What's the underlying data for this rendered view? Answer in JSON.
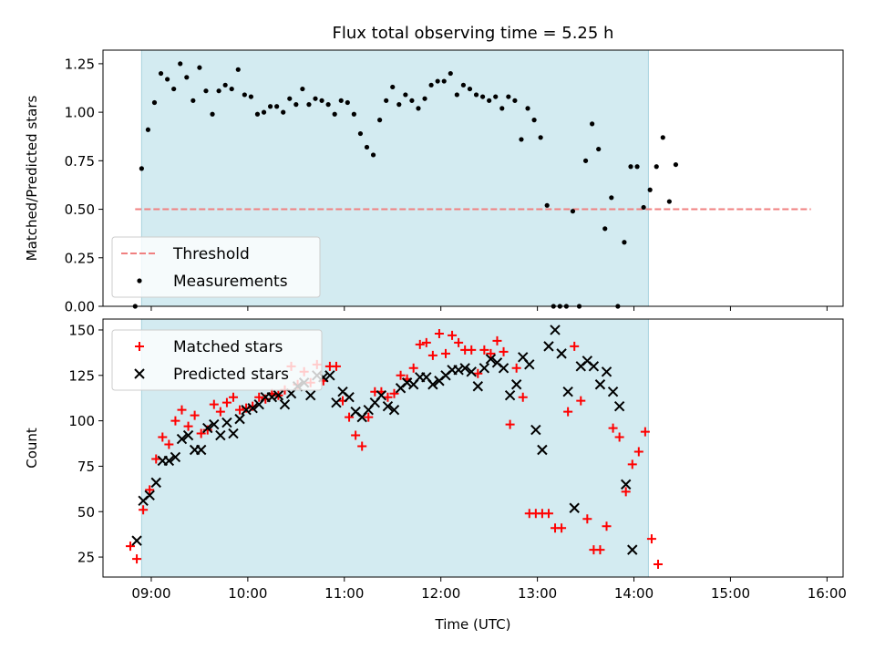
{
  "chart_data": [
    {
      "type": "scatter",
      "title": "Flux total observing time = 5.25 h",
      "ylabel": "Matched/Predicted stars",
      "xlabel": "",
      "xlim": [
        "08:30",
        "16:10"
      ],
      "ylim": [
        0,
        1.32
      ],
      "x_ticks": [
        "09:00",
        "10:00",
        "11:00",
        "12:00",
        "13:00",
        "14:00",
        "15:00",
        "16:00"
      ],
      "y_ticks": [
        "0.00",
        "0.25",
        "0.50",
        "0.75",
        "1.00",
        "1.25"
      ],
      "shaded_interval": {
        "start": "08:54",
        "end": "14:09",
        "color": "#d3ebf1"
      },
      "threshold": {
        "name": "Threshold",
        "value": 0.5,
        "x_range": [
          "08:50",
          "15:50"
        ],
        "color": "#f08080"
      },
      "legend": {
        "position": "lower-left",
        "entries": [
          "Threshold",
          "Measurements"
        ]
      },
      "series": [
        {
          "name": "Measurements",
          "color": "#000000",
          "marker": "dot",
          "points": [
            [
              "08:50",
              0.0
            ],
            [
              "08:54",
              0.71
            ],
            [
              "08:58",
              0.91
            ],
            [
              "09:02",
              1.05
            ],
            [
              "09:06",
              1.2
            ],
            [
              "09:10",
              1.17
            ],
            [
              "09:14",
              1.12
            ],
            [
              "09:18",
              1.25
            ],
            [
              "09:22",
              1.18
            ],
            [
              "09:26",
              1.06
            ],
            [
              "09:30",
              1.23
            ],
            [
              "09:34",
              1.11
            ],
            [
              "09:38",
              0.99
            ],
            [
              "09:42",
              1.11
            ],
            [
              "09:46",
              1.14
            ],
            [
              "09:50",
              1.12
            ],
            [
              "09:54",
              1.22
            ],
            [
              "09:58",
              1.09
            ],
            [
              "10:02",
              1.08
            ],
            [
              "10:06",
              0.99
            ],
            [
              "10:10",
              1.0
            ],
            [
              "10:14",
              1.03
            ],
            [
              "10:18",
              1.03
            ],
            [
              "10:22",
              1.0
            ],
            [
              "10:26",
              1.07
            ],
            [
              "10:30",
              1.04
            ],
            [
              "10:34",
              1.12
            ],
            [
              "10:38",
              1.04
            ],
            [
              "10:42",
              1.07
            ],
            [
              "10:46",
              1.06
            ],
            [
              "10:50",
              1.04
            ],
            [
              "10:54",
              0.99
            ],
            [
              "10:58",
              1.06
            ],
            [
              "11:02",
              1.05
            ],
            [
              "11:06",
              0.99
            ],
            [
              "11:10",
              0.89
            ],
            [
              "11:14",
              0.82
            ],
            [
              "11:18",
              0.78
            ],
            [
              "11:22",
              0.96
            ],
            [
              "11:26",
              1.06
            ],
            [
              "11:30",
              1.13
            ],
            [
              "11:34",
              1.04
            ],
            [
              "11:38",
              1.09
            ],
            [
              "11:42",
              1.06
            ],
            [
              "11:46",
              1.02
            ],
            [
              "11:50",
              1.07
            ],
            [
              "11:54",
              1.14
            ],
            [
              "11:58",
              1.16
            ],
            [
              "12:02",
              1.16
            ],
            [
              "12:06",
              1.2
            ],
            [
              "12:10",
              1.09
            ],
            [
              "12:14",
              1.14
            ],
            [
              "12:18",
              1.12
            ],
            [
              "12:22",
              1.09
            ],
            [
              "12:26",
              1.08
            ],
            [
              "12:30",
              1.06
            ],
            [
              "12:34",
              1.08
            ],
            [
              "12:38",
              1.02
            ],
            [
              "12:42",
              1.08
            ],
            [
              "12:46",
              1.06
            ],
            [
              "12:50",
              0.86
            ],
            [
              "12:54",
              1.02
            ],
            [
              "12:58",
              0.96
            ],
            [
              "13:02",
              0.87
            ],
            [
              "13:06",
              0.52
            ],
            [
              "13:10",
              0.0
            ],
            [
              "13:14",
              0.0
            ],
            [
              "13:18",
              0.0
            ],
            [
              "13:22",
              0.49
            ],
            [
              "13:26",
              0.0
            ],
            [
              "13:30",
              0.75
            ],
            [
              "13:34",
              0.94
            ],
            [
              "13:38",
              0.81
            ],
            [
              "13:42",
              0.4
            ],
            [
              "13:46",
              0.56
            ],
            [
              "13:50",
              0.0
            ],
            [
              "13:54",
              0.33
            ],
            [
              "13:58",
              0.72
            ],
            [
              "14:02",
              0.72
            ],
            [
              "14:06",
              0.51
            ],
            [
              "14:10",
              0.6
            ],
            [
              "14:14",
              0.72
            ],
            [
              "14:18",
              0.87
            ],
            [
              "14:22",
              0.54
            ],
            [
              "14:26",
              0.73
            ]
          ]
        }
      ]
    },
    {
      "type": "scatter",
      "title": "",
      "ylabel": "Count",
      "xlabel": "Time (UTC)",
      "xlim": [
        "08:30",
        "16:10"
      ],
      "ylim": [
        14,
        156
      ],
      "x_ticks": [
        "09:00",
        "10:00",
        "11:00",
        "12:00",
        "13:00",
        "14:00",
        "15:00",
        "16:00"
      ],
      "y_ticks": [
        "25",
        "50",
        "75",
        "100",
        "125",
        "150"
      ],
      "shaded_interval": {
        "start": "08:54",
        "end": "14:09",
        "color": "#d3ebf1"
      },
      "legend": {
        "position": "top-left",
        "entries": [
          "Matched stars",
          "Predicted stars"
        ]
      },
      "series": [
        {
          "name": "Matched stars",
          "color": "#ff0000",
          "marker": "plus",
          "points": [
            [
              "08:47",
              31
            ],
            [
              "08:51",
              24
            ],
            [
              "08:55",
              51
            ],
            [
              "08:59",
              62
            ],
            [
              "09:03",
              79
            ],
            [
              "09:07",
              91
            ],
            [
              "09:11",
              87
            ],
            [
              "09:15",
              100
            ],
            [
              "09:19",
              106
            ],
            [
              "09:23",
              97
            ],
            [
              "09:27",
              103
            ],
            [
              "09:31",
              93
            ],
            [
              "09:35",
              95
            ],
            [
              "09:39",
              109
            ],
            [
              "09:43",
              105
            ],
            [
              "09:47",
              110
            ],
            [
              "09:51",
              113
            ],
            [
              "09:55",
              106
            ],
            [
              "09:59",
              107
            ],
            [
              "10:03",
              108
            ],
            [
              "10:07",
              113
            ],
            [
              "10:11",
              112
            ],
            [
              "10:15",
              115
            ],
            [
              "10:19",
              114
            ],
            [
              "10:23",
              117
            ],
            [
              "10:27",
              130
            ],
            [
              "10:31",
              120
            ],
            [
              "10:35",
              127
            ],
            [
              "10:39",
              121
            ],
            [
              "10:43",
              131
            ],
            [
              "10:47",
              122
            ],
            [
              "10:51",
              130
            ],
            [
              "10:55",
              130
            ],
            [
              "10:59",
              111
            ],
            [
              "11:03",
              102
            ],
            [
              "11:07",
              92
            ],
            [
              "11:11",
              86
            ],
            [
              "11:15",
              102
            ],
            [
              "11:19",
              116
            ],
            [
              "11:23",
              116
            ],
            [
              "11:27",
              113
            ],
            [
              "11:31",
              115
            ],
            [
              "11:35",
              125
            ],
            [
              "11:39",
              123
            ],
            [
              "11:43",
              129
            ],
            [
              "11:47",
              142
            ],
            [
              "11:51",
              143
            ],
            [
              "11:55",
              136
            ],
            [
              "11:59",
              148
            ],
            [
              "12:03",
              137
            ],
            [
              "12:07",
              147
            ],
            [
              "12:11",
              143
            ],
            [
              "12:15",
              139
            ],
            [
              "12:19",
              139
            ],
            [
              "12:23",
              126
            ],
            [
              "12:27",
              139
            ],
            [
              "12:31",
              137
            ],
            [
              "12:35",
              144
            ],
            [
              "12:39",
              138
            ],
            [
              "12:43",
              98
            ],
            [
              "12:47",
              129
            ],
            [
              "12:51",
              113
            ],
            [
              "12:55",
              49
            ],
            [
              "12:59",
              49
            ],
            [
              "13:03",
              49
            ],
            [
              "13:07",
              49
            ],
            [
              "13:11",
              41
            ],
            [
              "13:15",
              41
            ],
            [
              "13:19",
              105
            ],
            [
              "13:23",
              141
            ],
            [
              "13:27",
              111
            ],
            [
              "13:31",
              46
            ],
            [
              "13:35",
              29
            ],
            [
              "13:39",
              29
            ],
            [
              "13:43",
              42
            ],
            [
              "13:47",
              96
            ],
            [
              "13:51",
              91
            ],
            [
              "13:55",
              61
            ],
            [
              "13:59",
              76
            ],
            [
              "14:03",
              83
            ],
            [
              "14:07",
              94
            ],
            [
              "14:11",
              35
            ],
            [
              "14:15",
              21
            ]
          ]
        },
        {
          "name": "Predicted stars",
          "color": "#000000",
          "marker": "x",
          "points": [
            [
              "08:51",
              34
            ],
            [
              "08:55",
              56
            ],
            [
              "08:59",
              59
            ],
            [
              "09:03",
              66
            ],
            [
              "09:07",
              78
            ],
            [
              "09:11",
              78
            ],
            [
              "09:15",
              80
            ],
            [
              "09:19",
              90
            ],
            [
              "09:23",
              92
            ],
            [
              "09:27",
              84
            ],
            [
              "09:31",
              84
            ],
            [
              "09:35",
              96
            ],
            [
              "09:39",
              98
            ],
            [
              "09:43",
              92
            ],
            [
              "09:47",
              99
            ],
            [
              "09:51",
              93
            ],
            [
              "09:55",
              101
            ],
            [
              "09:59",
              106
            ],
            [
              "10:03",
              107
            ],
            [
              "10:07",
              109
            ],
            [
              "10:11",
              113
            ],
            [
              "10:15",
              113
            ],
            [
              "10:19",
              114
            ],
            [
              "10:23",
              109
            ],
            [
              "10:27",
              115
            ],
            [
              "10:31",
              119
            ],
            [
              "10:35",
              121
            ],
            [
              "10:39",
              114
            ],
            [
              "10:43",
              125
            ],
            [
              "10:47",
              124
            ],
            [
              "10:51",
              125
            ],
            [
              "10:55",
              110
            ],
            [
              "10:59",
              116
            ],
            [
              "11:03",
              113
            ],
            [
              "11:07",
              105
            ],
            [
              "11:11",
              102
            ],
            [
              "11:15",
              106
            ],
            [
              "11:19",
              110
            ],
            [
              "11:23",
              114
            ],
            [
              "11:27",
              108
            ],
            [
              "11:31",
              106
            ],
            [
              "11:35",
              118
            ],
            [
              "11:39",
              121
            ],
            [
              "11:43",
              120
            ],
            [
              "11:47",
              124
            ],
            [
              "11:51",
              124
            ],
            [
              "11:55",
              120
            ],
            [
              "11:59",
              122
            ],
            [
              "12:03",
              125
            ],
            [
              "12:07",
              128
            ],
            [
              "12:11",
              128
            ],
            [
              "12:15",
              129
            ],
            [
              "12:19",
              127
            ],
            [
              "12:23",
              119
            ],
            [
              "12:27",
              129
            ],
            [
              "12:31",
              134
            ],
            [
              "12:35",
              132
            ],
            [
              "12:39",
              129
            ],
            [
              "12:43",
              114
            ],
            [
              "12:47",
              120
            ],
            [
              "12:51",
              135
            ],
            [
              "12:55",
              131
            ],
            [
              "12:59",
              95
            ],
            [
              "13:03",
              84
            ],
            [
              "13:07",
              141
            ],
            [
              "13:11",
              150
            ],
            [
              "13:15",
              137
            ],
            [
              "13:19",
              116
            ],
            [
              "13:23",
              52
            ],
            [
              "13:27",
              130
            ],
            [
              "13:31",
              133
            ],
            [
              "13:35",
              130
            ],
            [
              "13:39",
              120
            ],
            [
              "13:43",
              127
            ],
            [
              "13:47",
              116
            ],
            [
              "13:51",
              108
            ],
            [
              "13:55",
              65
            ],
            [
              "13:59",
              29
            ]
          ]
        }
      ]
    }
  ]
}
